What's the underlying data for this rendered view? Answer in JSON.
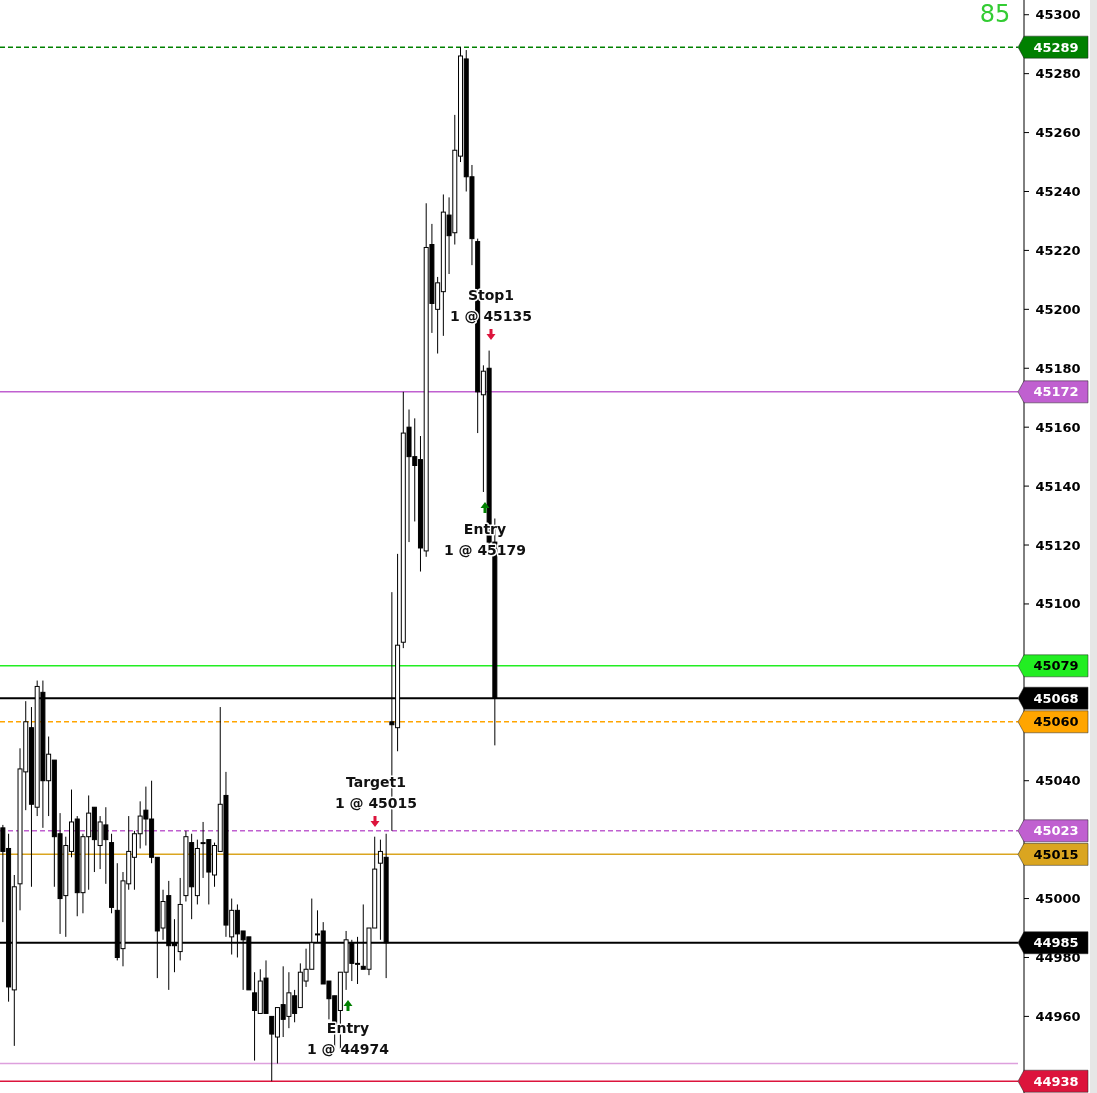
{
  "chart_data": {
    "type": "candlestick",
    "categories": [
      null,
      null,
      null,
      null,
      null,
      null,
      null,
      null,
      null,
      null,
      null,
      null,
      null,
      null,
      null,
      null,
      null,
      null,
      null,
      null,
      null,
      null,
      null,
      null,
      null,
      null,
      null,
      null,
      null,
      null,
      null,
      null,
      null,
      null,
      null,
      null,
      null,
      null,
      null,
      null,
      null,
      null,
      null,
      null,
      null,
      null,
      null,
      null,
      null,
      null,
      null,
      null,
      null,
      null,
      null,
      null,
      null,
      null,
      null,
      null,
      null,
      null,
      null,
      null,
      null,
      null,
      null,
      null,
      null,
      null,
      null,
      null,
      null,
      null,
      null,
      null,
      null,
      null,
      null,
      null,
      null,
      null,
      null,
      null,
      null,
      null,
      null,
      null,
      null,
      null,
      null,
      null,
      null,
      null,
      null,
      null,
      null,
      null,
      null,
      null,
      null,
      null,
      null,
      null,
      null,
      null,
      null,
      null,
      null,
      null,
      null,
      null,
      null,
      null,
      null,
      null,
      null,
      null,
      null,
      null,
      null,
      null,
      null,
      null,
      null,
      null,
      null,
      null,
      null,
      null,
      null,
      null,
      null,
      null,
      null,
      null,
      null,
      null,
      null,
      null,
      null,
      null,
      null,
      null,
      null,
      null,
      null,
      null,
      null,
      null,
      null,
      null,
      null,
      null,
      null,
      null,
      null,
      null,
      null,
      null,
      null,
      null,
      null,
      null,
      null,
      null,
      null,
      null,
      null,
      null,
      null,
      null,
      null,
      null,
      null,
      null,
      null,
      null,
      null
    ],
    "ohlc": [
      [
        45024,
        45025,
        44992,
        45016
      ],
      [
        45017,
        45022,
        44965,
        44970
      ],
      [
        44969,
        45008,
        44950,
        45004
      ],
      [
        45005,
        45051,
        44996,
        45044
      ],
      [
        45043,
        45067,
        45030,
        45060
      ],
      [
        45058,
        45065,
        45004,
        45032
      ],
      [
        45031,
        45074,
        45028,
        45072
      ],
      [
        45070,
        45074,
        45024,
        45040
      ],
      [
        45040,
        45055,
        45028,
        45049
      ],
      [
        45047,
        45047,
        45004,
        45021
      ],
      [
        45022,
        45029,
        44988,
        45000
      ],
      [
        45001,
        45021,
        44987,
        45018
      ],
      [
        45016,
        45037,
        45014,
        45026
      ],
      [
        45027,
        45028,
        44994,
        45002
      ],
      [
        45002,
        45022,
        44995,
        45021
      ],
      [
        45021,
        45035,
        45003,
        45029
      ],
      [
        45031,
        45031,
        45009,
        45020
      ],
      [
        45018,
        45028,
        45010,
        45026
      ],
      [
        45025,
        45031,
        45005,
        45020
      ],
      [
        45019,
        45022,
        44995,
        44997
      ],
      [
        44996,
        45012,
        44979,
        44980
      ],
      [
        44983,
        45009,
        44977,
        45006
      ],
      [
        45005,
        45028,
        45003,
        45016
      ],
      [
        45014,
        45023,
        45003,
        45022
      ],
      [
        45022,
        45033,
        45017,
        45028
      ],
      [
        45030,
        45038,
        45018,
        45027
      ],
      [
        45027,
        45040,
        45012,
        45014
      ],
      [
        45014,
        45014,
        44973,
        44989
      ],
      [
        44990,
        45003,
        44986,
        44999
      ],
      [
        45001,
        45006,
        44969,
        44984
      ],
      [
        44985,
        44993,
        44975,
        44984
      ],
      [
        44982,
        45007,
        44979,
        44998
      ],
      [
        45001,
        45023,
        44999,
        45021
      ],
      [
        45019,
        45022,
        44993,
        45004
      ],
      [
        45001,
        45020,
        44998,
        45017
      ],
      [
        45019,
        45026,
        45007,
        45019
      ],
      [
        45020,
        45020,
        44998,
        45009
      ],
      [
        45008,
        45019,
        45004,
        45018
      ],
      [
        45016,
        45065,
        45016,
        45032
      ],
      [
        45035,
        45043,
        44987,
        44991
      ],
      [
        44987,
        45000,
        44981,
        44996
      ],
      [
        44996,
        44998,
        44980,
        44988
      ],
      [
        44989,
        44989,
        44969,
        44986
      ],
      [
        44987,
        44987,
        44969,
        44969
      ],
      [
        44968,
        44975,
        44945,
        44962
      ],
      [
        44961,
        44976,
        44961,
        44972
      ],
      [
        44973,
        44979,
        44961,
        44961
      ],
      [
        44960,
        44960,
        44938,
        44954
      ],
      [
        44953,
        44963,
        44944,
        44963
      ],
      [
        44964,
        44977,
        44953,
        44959
      ],
      [
        44960,
        44975,
        44956,
        44968
      ],
      [
        44967,
        44969,
        44958,
        44961
      ],
      [
        44963,
        44978,
        44963,
        44975
      ],
      [
        44972,
        44983,
        44970,
        44976
      ],
      [
        44976,
        45000,
        44976,
        44985
      ],
      [
        44988,
        44996,
        44985,
        44988
      ],
      [
        44989,
        44992,
        44971,
        44971
      ],
      [
        44972,
        44972,
        44959,
        44966
      ],
      [
        44967,
        44967,
        44949,
        44957
      ],
      [
        44962,
        44975,
        44949,
        44975
      ],
      [
        44975,
        44989,
        44969,
        44986
      ],
      [
        44985,
        44986,
        44972,
        44978
      ],
      [
        44978,
        44987,
        44971,
        44978
      ],
      [
        44977,
        44998,
        44976,
        44976
      ],
      [
        44976,
        44990,
        44974,
        44990
      ],
      [
        44990,
        45021,
        44990,
        45010
      ],
      [
        45012,
        45020,
        44986,
        45016
      ],
      [
        45014,
        45022,
        44973,
        44985
      ],
      [
        45060,
        45104,
        45023,
        45059
      ],
      [
        45058,
        45117,
        45050,
        45086
      ],
      [
        45087,
        45172,
        45085,
        45158
      ],
      [
        45160,
        45166,
        45121,
        45150
      ],
      [
        45150,
        45163,
        45128,
        45147
      ],
      [
        45149,
        45157,
        45111,
        45119
      ],
      [
        45118,
        45236,
        45116,
        45221
      ],
      [
        45222,
        45229,
        45192,
        45202
      ],
      [
        45200,
        45211,
        45185,
        45209
      ],
      [
        45206,
        45239,
        45191,
        45233
      ],
      [
        45232,
        45238,
        45212,
        45225
      ],
      [
        45226,
        45266,
        45222,
        45254
      ],
      [
        45252,
        45289,
        45250,
        45286
      ],
      [
        45285,
        45288,
        45240,
        45245
      ],
      [
        45245,
        45249,
        45215,
        45224
      ],
      [
        45223,
        45224,
        45158,
        45172
      ],
      [
        45171,
        45181,
        45138,
        45179
      ],
      [
        45180,
        45186,
        45118,
        45121
      ],
      [
        45121,
        45129,
        45052,
        45068
      ],
      null,
      null,
      null,
      null,
      null,
      null,
      null,
      null,
      null,
      null,
      null,
      null,
      null,
      null,
      null,
      null,
      null,
      null,
      null,
      null,
      null,
      null,
      null,
      null,
      null,
      null,
      null,
      null,
      null,
      null,
      null,
      null,
      null,
      null,
      null,
      null,
      null,
      null,
      null,
      null,
      null,
      null,
      null,
      null,
      null,
      null,
      null,
      null,
      null,
      null,
      null,
      null,
      null,
      null,
      null,
      null,
      null,
      null,
      null,
      null,
      null,
      null,
      null,
      null,
      null,
      null,
      null,
      null,
      null,
      null,
      null,
      null,
      null,
      null,
      null,
      null,
      null,
      null,
      null,
      null,
      null,
      null,
      null,
      null,
      null,
      null,
      null,
      null,
      null,
      null,
      null,
      null
    ],
    "ylim": [
      44934,
      45305
    ],
    "yticks": [
      44960,
      44980,
      45000,
      45040,
      45100,
      45120,
      45140,
      45160,
      45180,
      45200,
      45220,
      45240,
      45260,
      45280,
      45300
    ],
    "ref_lines": [
      {
        "axis": "y",
        "value": 45289,
        "label": "45289",
        "color": "#008000",
        "line_style": "dashed"
      },
      {
        "axis": "y",
        "value": 45172,
        "label": "45172",
        "color": "#c060d0",
        "line_style": "solid"
      },
      {
        "axis": "y",
        "value": 45079,
        "label": "45079",
        "color": "#22ee22",
        "line_style": "solid"
      },
      {
        "axis": "y",
        "value": 45068,
        "label": "45068",
        "color": "#000000",
        "line_style": "solid"
      },
      {
        "axis": "y",
        "value": 45060,
        "label": "45060",
        "color": "#ffa500",
        "line_style": "dashed"
      },
      {
        "axis": "y",
        "value": 45023,
        "label": "45023",
        "color": "#c060d0",
        "line_style": "dashed"
      },
      {
        "axis": "y",
        "value": 45015,
        "label": "45015",
        "color": "#daa520",
        "line_style": "solid"
      },
      {
        "axis": "y",
        "value": 44985,
        "label": "44985",
        "color": "#000000",
        "line_style": "solid"
      },
      {
        "axis": "y",
        "value": 44944,
        "label": null,
        "color": "#dda0dd",
        "line_style": "solid"
      },
      {
        "axis": "y",
        "value": 44938,
        "label": "44938",
        "color": "#dc143c",
        "line_style": "solid"
      }
    ],
    "annotations": [
      "85",
      "Stop1\n1 @ 45135",
      "Entry\n1 @ 45179",
      "Target1\n1 @ 45015",
      "Entry\n1 @ 44974"
    ]
  }
}
